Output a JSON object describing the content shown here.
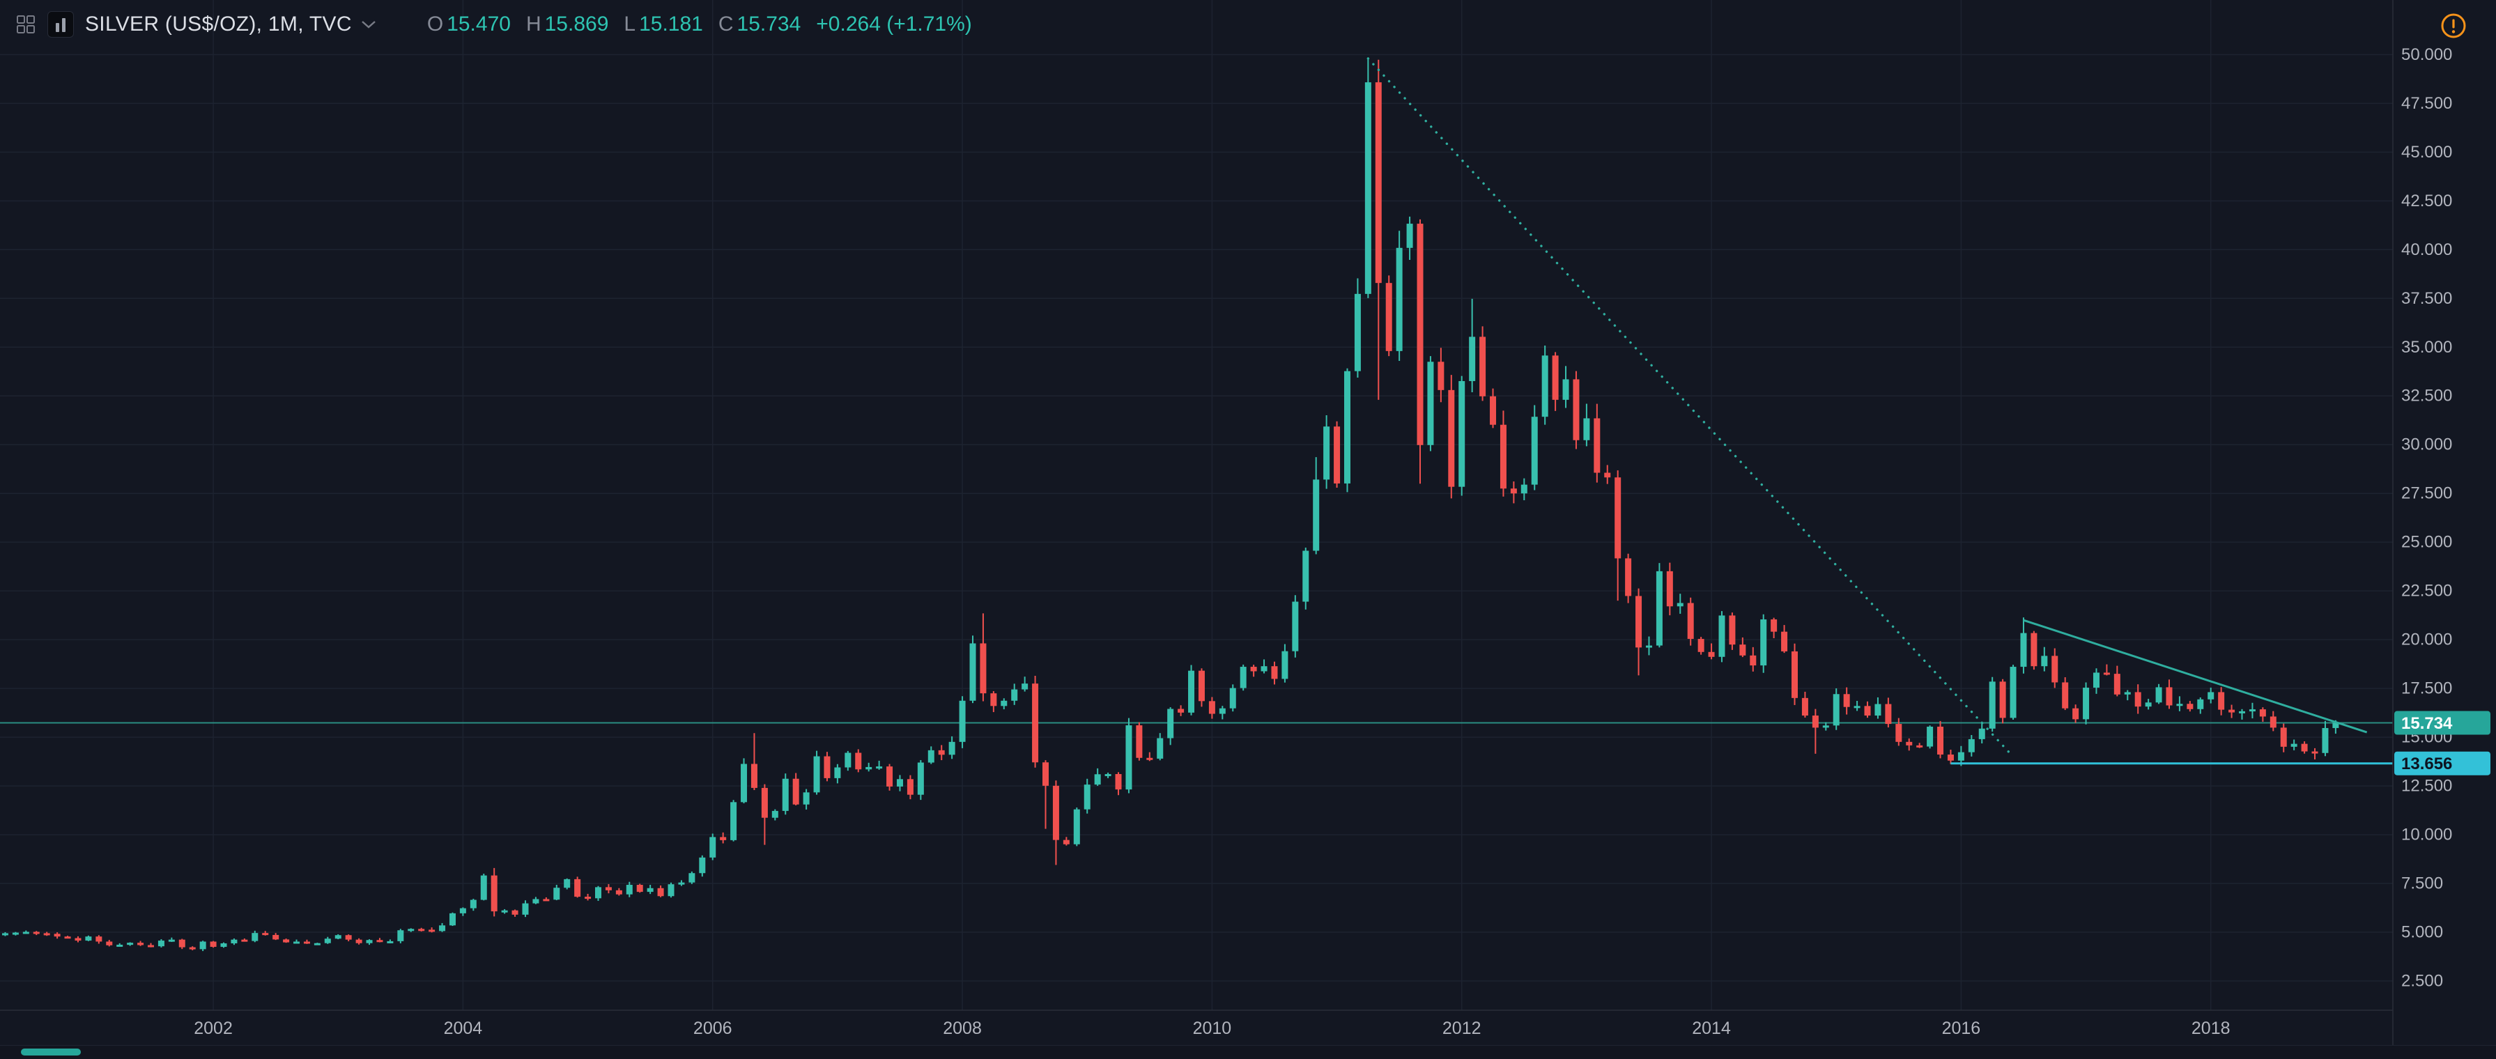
{
  "header": {
    "symbol": "SILVER (US$/OZ), 1M, TVC",
    "ohlc": {
      "o_label": "O",
      "o_value": "15.470",
      "h_label": "H",
      "h_value": "15.869",
      "l_label": "L",
      "l_value": "15.181",
      "c_label": "C",
      "c_value": "15.734",
      "change": "+0.264 (+1.71%)"
    }
  },
  "icons": [
    "layout-grid-icon",
    "symbol-logo-icon",
    "chevron-down-icon",
    "delayed-data-warning-icon"
  ],
  "colors": {
    "background": "#131722",
    "grid": "#1d2330",
    "axis_border": "#2a2e39",
    "axis_text": "#b2b5be",
    "up": "#38c0ae",
    "down": "#f0504e",
    "trendline": "#2fae9f",
    "support": "#2fc1d9",
    "price_line": "#2a8d82",
    "price_tag_bg": "#26a69a",
    "price_tag_text": "#ffffff",
    "support_tag_bg": "#33c1d8",
    "support_tag_text": "#0d1320",
    "warning": "#f7931a",
    "header_text": "#dcdfe6",
    "ohlc_label": "#868b97",
    "ohlc_value": "#2ec4b2"
  },
  "price_axis": {
    "tick_labels": [
      "50.000",
      "47.500",
      "45.000",
      "42.500",
      "40.000",
      "37.500",
      "35.000",
      "32.500",
      "30.000",
      "27.500",
      "25.000",
      "22.500",
      "20.000",
      "17.500",
      "15.000",
      "12.500",
      "10.000",
      "7.500",
      "5.000",
      "2.500"
    ],
    "tags": [
      {
        "label": "15.734",
        "price": 15.734,
        "style": "last-price"
      },
      {
        "label": "13.656",
        "price": 13.656,
        "style": "support-level"
      }
    ]
  },
  "time_axis": {
    "labels": [
      "2002",
      "2004",
      "2006",
      "2008",
      "2010",
      "2012",
      "2014",
      "2016",
      "2018"
    ]
  },
  "chart_data": {
    "type": "candlestick",
    "title": "SILVER (US$/OZ)",
    "interval": "1M",
    "exchange": "TVC",
    "unit": "US$/OZ",
    "start_month": "2000-05",
    "y_range": [
      1.0,
      52.8
    ],
    "closes": [
      4.95,
      4.98,
      5.02,
      4.95,
      4.92,
      4.78,
      4.7,
      4.57,
      4.78,
      4.52,
      4.33,
      4.36,
      4.46,
      4.34,
      4.28,
      4.57,
      4.62,
      4.23,
      4.13,
      4.52,
      4.25,
      4.43,
      4.62,
      4.55,
      4.96,
      4.86,
      4.63,
      4.48,
      4.52,
      4.43,
      4.44,
      4.67,
      4.85,
      4.62,
      4.44,
      4.6,
      4.52,
      4.54,
      5.1,
      5.17,
      5.13,
      5.06,
      5.35,
      5.97,
      6.23,
      6.66,
      7.91,
      6.07,
      6.12,
      5.9,
      6.48,
      6.7,
      6.67,
      7.28,
      7.72,
      6.82,
      6.74,
      7.31,
      7.15,
      6.94,
      7.43,
      7.07,
      7.26,
      6.85,
      7.46,
      7.55,
      8.03,
      8.83,
      9.88,
      9.72,
      11.67,
      13.63,
      12.4,
      10.87,
      11.22,
      12.87,
      11.55,
      12.17,
      14.02,
      12.9,
      13.45,
      14.2,
      13.35,
      13.47,
      13.5,
      12.47,
      12.85,
      12.05,
      13.7,
      14.33,
      14.1,
      14.76,
      16.87,
      19.81,
      17.25,
      16.6,
      16.87,
      17.45,
      17.75,
      13.71,
      12.51,
      9.73,
      9.51,
      11.3,
      12.57,
      13.1,
      13.11,
      12.32,
      15.61,
      13.94,
      13.9,
      14.95,
      16.45,
      16.26,
      18.41,
      16.85,
      16.2,
      16.48,
      17.52,
      18.61,
      18.38,
      18.64,
      17.99,
      19.41,
      21.95,
      24.56,
      28.21,
      30.93,
      28.01,
      33.77,
      37.73,
      48.58,
      38.29,
      34.8,
      40.09,
      41.33,
      29.98,
      34.25,
      32.8,
      27.84,
      33.26,
      35.53,
      32.48,
      31.02,
      27.75,
      27.5,
      27.95,
      31.43,
      34.57,
      32.3,
      33.35,
      30.23,
      31.35,
      28.56,
      28.32,
      24.17,
      22.24,
      19.6,
      19.7,
      23.51,
      21.71,
      21.88,
      20.04,
      19.37,
      19.12,
      21.24,
      19.75,
      19.19,
      18.68,
      21.04,
      20.41,
      19.4,
      17.01,
      16.11,
      15.49,
      15.6,
      17.21,
      16.55,
      16.6,
      16.11,
      16.7,
      15.68,
      14.76,
      14.58,
      14.52,
      15.54,
      14.11,
      13.8,
      14.23,
      14.9,
      15.44,
      17.85,
      15.99,
      18.61,
      20.34,
      18.64,
      19.17,
      17.81,
      16.48,
      15.92,
      17.54,
      18.31,
      18.25,
      17.19,
      17.31,
      16.57,
      16.78,
      17.56,
      16.63,
      16.71,
      16.44,
      16.94,
      17.31,
      16.41,
      16.27,
      16.33,
      16.43,
      16.06,
      15.49,
      14.51,
      14.66,
      14.27,
      14.19,
      15.47,
      15.734
    ],
    "wick_overrides": {
      "2004-04": {
        "h": 8.29,
        "l": 5.81
      },
      "2006-05": {
        "h": 15.21
      },
      "2006-06": {
        "l": 9.48
      },
      "2008-03": {
        "h": 21.35
      },
      "2008-09": {
        "l": 10.3
      },
      "2008-10": {
        "l": 8.45
      },
      "2010-11": {
        "h": 29.36
      },
      "2011-04": {
        "h": 49.83
      },
      "2011-05": {
        "l": 32.3
      },
      "2011-09": {
        "l": 28.0
      },
      "2012-02": {
        "h": 37.48
      },
      "2013-04": {
        "l": 22.0
      },
      "2013-06": {
        "l": 18.17
      },
      "2014-11": {
        "l": 14.15
      },
      "2015-12": {
        "l": 13.62
      },
      "2016-07": {
        "h": 21.14
      },
      "2018-11": {
        "l": 13.86
      },
      "2019-01": {
        "o": 15.47,
        "h": 15.869,
        "l": 15.181,
        "c": 15.734
      }
    },
    "last_candle": {
      "open": 15.47,
      "high": 15.869,
      "low": 15.181,
      "close": 15.734,
      "change": 0.264,
      "change_pct": 1.71
    },
    "drawings": [
      {
        "kind": "trendline",
        "name": "downtrend-dotted-trendline",
        "style": "dotted",
        "from": [
          "2011-04",
          49.8
        ],
        "to": [
          "2016-06",
          14.0
        ]
      },
      {
        "kind": "trendline",
        "name": "descending-trendline",
        "style": "solid",
        "from": [
          "2016-07",
          21.0
        ],
        "to": [
          "2019-04",
          15.25
        ]
      },
      {
        "kind": "horizontal-ray",
        "name": "support-horizontal-ray",
        "price": 13.656,
        "from": "2015-12"
      },
      {
        "kind": "price-line",
        "name": "last-price-line",
        "price": 15.734
      }
    ]
  }
}
